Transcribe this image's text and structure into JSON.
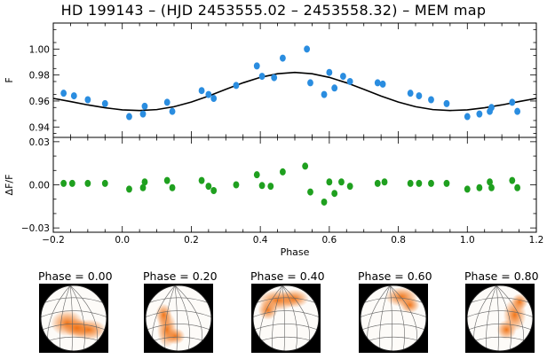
{
  "chart_data": [
    {
      "type": "scatter",
      "panel": "light-curve",
      "title": "HD 199143 – (HJD 2453555.02 – 2453558.32) – MEM map",
      "ylabel": "F",
      "xlim": [
        -0.2,
        1.2
      ],
      "ylim": [
        0.932,
        1.02
      ],
      "yticks": [
        0.94,
        0.96,
        0.98,
        1.0
      ],
      "yticklabels": [
        "0.94",
        "0.96",
        "0.98",
        "1.00"
      ],
      "grid": false,
      "points_color": "#2a8de0",
      "model_color": "#000000",
      "series": [
        {
          "name": "observed",
          "x": [
            -0.17,
            -0.14,
            -0.1,
            -0.05,
            0.02,
            0.06,
            0.065,
            0.13,
            0.145,
            0.23,
            0.25,
            0.265,
            0.33,
            0.39,
            0.405,
            0.44,
            0.465,
            0.535,
            0.545,
            0.585,
            0.6,
            0.615,
            0.64,
            0.66,
            0.74,
            0.755,
            0.835,
            0.86,
            0.895,
            0.94,
            1.0,
            1.035,
            1.065,
            1.07,
            1.13,
            1.145
          ],
          "y": [
            0.966,
            0.964,
            0.961,
            0.958,
            0.948,
            0.95,
            0.956,
            0.959,
            0.952,
            0.968,
            0.965,
            0.962,
            0.972,
            0.987,
            0.979,
            0.978,
            0.993,
            1.0,
            0.974,
            0.965,
            0.982,
            0.97,
            0.979,
            0.975,
            0.974,
            0.973,
            0.966,
            0.964,
            0.961,
            0.958,
            0.948,
            0.95,
            0.952,
            0.955,
            0.959,
            0.952
          ]
        },
        {
          "name": "MEM model",
          "x": [
            -0.2,
            -0.15,
            -0.1,
            -0.05,
            0.0,
            0.05,
            0.1,
            0.15,
            0.2,
            0.25,
            0.3,
            0.35,
            0.4,
            0.45,
            0.5,
            0.55,
            0.6,
            0.65,
            0.7,
            0.75,
            0.8,
            0.85,
            0.9,
            0.95,
            1.0,
            1.05,
            1.1,
            1.15,
            1.2
          ],
          "y": [
            0.962,
            0.9596,
            0.957,
            0.9548,
            0.9532,
            0.9527,
            0.9534,
            0.9556,
            0.9592,
            0.9638,
            0.969,
            0.974,
            0.9782,
            0.981,
            0.982,
            0.981,
            0.9782,
            0.974,
            0.969,
            0.9638,
            0.9592,
            0.9556,
            0.9534,
            0.9527,
            0.9532,
            0.9548,
            0.957,
            0.9596,
            0.962
          ]
        }
      ]
    },
    {
      "type": "scatter",
      "panel": "residuals",
      "ylabel": "ΔF/F",
      "xlabel": "Phase",
      "xlim": [
        -0.2,
        1.2
      ],
      "ylim": [
        -0.033,
        0.033
      ],
      "xticks": [
        -0.2,
        0.0,
        0.2,
        0.4,
        0.6,
        0.8,
        1.0,
        1.2
      ],
      "xticklabels": [
        "−0.2",
        "0.0",
        "0.2",
        "0.4",
        "0.6",
        "0.8",
        "1.0",
        "1.2"
      ],
      "yticks": [
        -0.03,
        0.0,
        0.03
      ],
      "yticklabels": [
        "−0.03",
        "0.00",
        "0.03"
      ],
      "grid": false,
      "points_color": "#1fa01f",
      "series": [
        {
          "name": "residuals",
          "x": [
            -0.17,
            -0.145,
            -0.1,
            -0.05,
            0.02,
            0.06,
            0.065,
            0.13,
            0.145,
            0.23,
            0.25,
            0.265,
            0.33,
            0.39,
            0.405,
            0.43,
            0.465,
            0.53,
            0.545,
            0.585,
            0.6,
            0.615,
            0.635,
            0.66,
            0.74,
            0.76,
            0.835,
            0.86,
            0.895,
            0.94,
            1.0,
            1.035,
            1.065,
            1.07,
            1.13,
            1.145
          ],
          "y": [
            0.001,
            0.001,
            0.001,
            0.001,
            -0.003,
            -0.002,
            0.002,
            0.003,
            -0.002,
            0.003,
            -0.001,
            -0.004,
            0.0,
            0.007,
            -0.0005,
            -0.001,
            0.009,
            0.013,
            -0.005,
            -0.012,
            0.002,
            -0.006,
            0.002,
            -0.001,
            0.001,
            0.002,
            0.001,
            0.001,
            0.001,
            0.001,
            -0.003,
            -0.002,
            0.002,
            -0.002,
            0.003,
            -0.002
          ]
        }
      ]
    }
  ],
  "phase_maps": {
    "labels": [
      "Phase = 0.00",
      "Phase = 0.20",
      "Phase = 0.40",
      "Phase = 0.60",
      "Phase = 0.80"
    ],
    "spot_color": "#f07010"
  }
}
